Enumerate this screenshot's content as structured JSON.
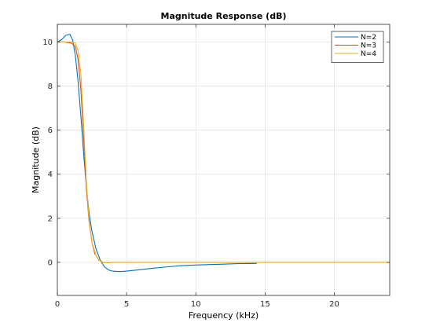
{
  "chart_data": {
    "type": "line",
    "title": "Magnitude Response (dB)",
    "xlabel": "Frequency (kHz)",
    "ylabel": "Magnitude (dB)",
    "xlim": [
      0,
      24
    ],
    "ylim": [
      -1.5,
      10.8
    ],
    "xticks": [
      0,
      5,
      10,
      15,
      20
    ],
    "yticks": [
      0,
      2,
      4,
      6,
      8,
      10
    ],
    "xtick_labels": [
      "0",
      "5",
      "10",
      "15",
      "20"
    ],
    "ytick_labels": [
      "0",
      "2",
      "4",
      "6",
      "8",
      "10"
    ],
    "grid": true,
    "legend_position": "top-right",
    "series": [
      {
        "name": "N=2",
        "color": "#0072BD",
        "x": [
          0,
          0.3,
          0.6,
          0.9,
          1.1,
          1.3,
          1.5,
          1.7,
          1.9,
          2.1,
          2.3,
          2.5,
          2.8,
          3.1,
          3.4,
          3.7,
          4.0,
          4.5,
          5.0,
          6.0,
          7.0,
          8.0,
          9.0,
          10.0,
          11.0,
          12.0,
          13.0,
          14.4
        ],
        "y": [
          10.0,
          10.1,
          10.3,
          10.35,
          10.1,
          9.4,
          8.2,
          6.6,
          4.9,
          3.4,
          2.2,
          1.4,
          0.6,
          0.1,
          -0.2,
          -0.35,
          -0.4,
          -0.42,
          -0.4,
          -0.33,
          -0.26,
          -0.2,
          -0.15,
          -0.12,
          -0.1,
          -0.08,
          -0.06,
          -0.05
        ]
      },
      {
        "name": "N=3",
        "color": "#D95319",
        "x": [
          0,
          0.5,
          1.0,
          1.3,
          1.5,
          1.7,
          1.9,
          2.1,
          2.3,
          2.5,
          2.7,
          3.0,
          3.3,
          3.6,
          4.0,
          5.0,
          8.0,
          12.0,
          16.0,
          20.0,
          24.0
        ],
        "y": [
          10.0,
          10.0,
          9.95,
          9.8,
          9.2,
          7.8,
          5.6,
          3.3,
          1.8,
          0.9,
          0.4,
          0.1,
          0.0,
          -0.02,
          0.0,
          0.0,
          0.0,
          0.0,
          0.0,
          0.0,
          0.0
        ]
      },
      {
        "name": "N=4",
        "color": "#EDB120",
        "x": [
          0,
          0.5,
          1.0,
          1.3,
          1.5,
          1.7,
          1.9,
          2.1,
          2.3,
          2.5,
          2.8,
          3.1,
          3.4,
          3.8,
          4.5,
          6.0,
          10.0,
          16.0,
          24.0
        ],
        "y": [
          10.0,
          10.0,
          10.0,
          9.95,
          9.6,
          8.5,
          6.2,
          3.6,
          1.9,
          0.9,
          0.3,
          0.05,
          -0.02,
          0.0,
          0.0,
          0.0,
          0.0,
          0.0,
          0.0
        ]
      }
    ]
  }
}
